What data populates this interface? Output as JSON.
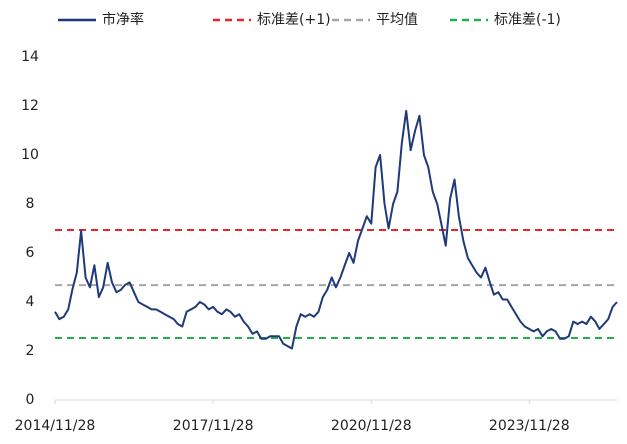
{
  "chart_data": {
    "type": "line",
    "x": [
      "2014/11/28",
      "2014/12/28",
      "2015/01/28",
      "2015/02/28",
      "2015/03/28",
      "2015/04/28",
      "2015/05/28",
      "2015/06/28",
      "2015/07/28",
      "2015/08/28",
      "2015/09/28",
      "2015/10/28",
      "2015/11/28",
      "2015/12/28",
      "2016/01/28",
      "2016/02/28",
      "2016/03/28",
      "2016/04/28",
      "2016/05/28",
      "2016/06/28",
      "2016/07/28",
      "2016/08/28",
      "2016/09/28",
      "2016/10/28",
      "2016/11/28",
      "2016/12/28",
      "2017/01/28",
      "2017/02/28",
      "2017/03/28",
      "2017/04/28",
      "2017/05/28",
      "2017/06/28",
      "2017/07/28",
      "2017/08/28",
      "2017/09/28",
      "2017/10/28",
      "2017/11/28",
      "2017/12/28",
      "2018/01/28",
      "2018/02/28",
      "2018/03/28",
      "2018/04/28",
      "2018/05/28",
      "2018/06/28",
      "2018/07/28",
      "2018/08/28",
      "2018/09/28",
      "2018/10/28",
      "2018/11/28",
      "2018/12/28",
      "2019/01/28",
      "2019/02/28",
      "2019/03/28",
      "2019/04/28",
      "2019/05/28",
      "2019/06/28",
      "2019/07/28",
      "2019/08/28",
      "2019/09/28",
      "2019/10/28",
      "2019/11/28",
      "2019/12/28",
      "2020/01/28",
      "2020/02/28",
      "2020/03/28",
      "2020/04/28",
      "2020/05/28",
      "2020/06/28",
      "2020/07/28",
      "2020/08/28",
      "2020/09/28",
      "2020/10/28",
      "2020/11/28",
      "2020/12/28",
      "2021/01/28",
      "2021/02/28",
      "2021/03/28",
      "2021/04/28",
      "2021/05/28",
      "2021/06/28",
      "2021/07/28",
      "2021/08/28",
      "2021/09/28",
      "2021/10/28",
      "2021/11/28",
      "2021/12/28",
      "2022/01/28",
      "2022/02/28",
      "2022/03/28",
      "2022/04/28",
      "2022/05/28",
      "2022/06/28",
      "2022/07/28",
      "2022/08/28",
      "2022/09/28",
      "2022/10/28",
      "2022/11/28",
      "2022/12/28",
      "2023/01/28",
      "2023/02/28",
      "2023/03/28",
      "2023/04/28",
      "2023/05/28",
      "2023/06/28",
      "2023/07/28",
      "2023/08/28",
      "2023/09/28",
      "2023/10/28",
      "2023/11/28",
      "2023/12/28",
      "2024/01/28",
      "2024/02/28",
      "2024/03/28",
      "2024/04/28",
      "2024/05/28",
      "2024/06/28",
      "2024/07/28",
      "2024/08/28",
      "2024/09/28",
      "2024/10/28",
      "2024/11/28",
      "2024/12/28",
      "2025/01/28",
      "2025/02/28",
      "2025/03/28",
      "2025/04/28",
      "2025/05/28",
      "2025/06/28",
      "2025/07/28"
    ],
    "series": [
      {
        "name": "市净率",
        "color": "#1f3a7a",
        "values": [
          3.6,
          3.3,
          3.4,
          3.7,
          4.5,
          5.2,
          6.9,
          5.0,
          4.6,
          5.5,
          4.2,
          4.6,
          5.6,
          4.8,
          4.4,
          4.5,
          4.7,
          4.8,
          4.4,
          4.0,
          3.9,
          3.8,
          3.7,
          3.7,
          3.6,
          3.5,
          3.4,
          3.3,
          3.1,
          3.0,
          3.6,
          3.7,
          3.8,
          4.0,
          3.9,
          3.7,
          3.8,
          3.6,
          3.5,
          3.7,
          3.6,
          3.4,
          3.5,
          3.2,
          3.0,
          2.7,
          2.8,
          2.5,
          2.5,
          2.6,
          2.6,
          2.6,
          2.3,
          2.2,
          2.1,
          3.0,
          3.5,
          3.4,
          3.5,
          3.4,
          3.6,
          4.2,
          4.5,
          5.0,
          4.6,
          5.0,
          5.5,
          6.0,
          5.6,
          6.5,
          7.0,
          7.5,
          7.2,
          9.5,
          10.0,
          8.0,
          7.0,
          8.0,
          8.5,
          10.5,
          11.8,
          10.2,
          11.0,
          11.6,
          10.0,
          9.5,
          8.5,
          8.0,
          7.2,
          6.3,
          8.2,
          9.0,
          7.5,
          6.5,
          5.8,
          5.5,
          5.2,
          5.0,
          5.4,
          4.8,
          4.3,
          4.4,
          4.1,
          4.1,
          3.8,
          3.5,
          3.2,
          3.0,
          2.9,
          2.8,
          2.9,
          2.6,
          2.8,
          2.9,
          2.8,
          2.5,
          2.5,
          2.6,
          3.2,
          3.1,
          3.2,
          3.1,
          3.4,
          3.2,
          2.9,
          3.1,
          3.3,
          3.8,
          4.0
        ]
      }
    ],
    "reference_lines": [
      {
        "name": "标准差(+1)",
        "color": "#e8262a",
        "value": 6.94
      },
      {
        "name": "平均值",
        "color": "#a6a6a6",
        "value": 4.69
      },
      {
        "name": "标准差(-1)",
        "color": "#21b04b",
        "value": 2.53
      }
    ],
    "xlim": [
      "2014/11/28",
      "2025/07/28"
    ],
    "xticks": [
      "2014/11/28",
      "2017/11/28",
      "2020/11/28",
      "2023/11/28"
    ],
    "ylim": [
      0,
      14
    ],
    "yticks": [
      0,
      2,
      4,
      6,
      8,
      10,
      12,
      14
    ],
    "grid": false,
    "legend": "top"
  }
}
